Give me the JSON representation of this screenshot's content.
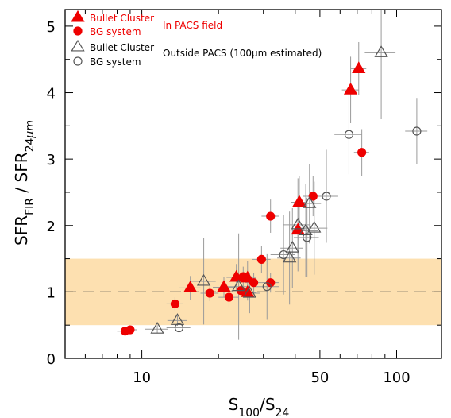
{
  "chart_data": {
    "type": "scatter",
    "xscale": "log",
    "xlim": [
      5,
      150
    ],
    "ylim": [
      0,
      5.25
    ],
    "xticks": [
      10,
      50,
      100
    ],
    "yticks": [
      0,
      1,
      2,
      3,
      4,
      5
    ],
    "xlabel": {
      "main": "S",
      "sub1": "100",
      "sep": "/S",
      "sub2": "24"
    },
    "ylabel": {
      "a": "SFR",
      "asub": "FIR",
      "sep": "  /  SFR",
      "bsub": "24",
      "bsub_unit": "μm"
    },
    "band": {
      "y0": 0.5,
      "y1": 1.5,
      "color": "#fde0b0"
    },
    "reference_line": {
      "y": 1,
      "style": "dashed"
    },
    "legend_groups": [
      {
        "label": "In PACS field",
        "color": "#ee0000"
      },
      {
        "label": "Outside PACS (100μm estimated)",
        "color": "#000000"
      }
    ],
    "series": [
      {
        "name": "Bullet Cluster",
        "group": 0,
        "marker": "triangle",
        "filled": true,
        "color": "#ee0000",
        "points": [
          {
            "x": 15.5,
            "y": 1.06,
            "xerr": 1.5,
            "yerr": 0.18
          },
          {
            "x": 21,
            "y": 1.07,
            "xerr": 2.0,
            "yerr": 0.15
          },
          {
            "x": 23.5,
            "y": 1.22,
            "xerr": 2.0,
            "yerr": 0.2
          },
          {
            "x": 26,
            "y": 1.21,
            "xerr": 2.0,
            "yerr": 0.25
          },
          {
            "x": 26,
            "y": 0.99,
            "xerr": 2.0,
            "yerr": 0.12
          },
          {
            "x": 41,
            "y": 1.93,
            "xerr": 3.0,
            "yerr": 0.35
          },
          {
            "x": 41.5,
            "y": 2.35,
            "xerr": 3.0,
            "yerr": 0.4
          },
          {
            "x": 66,
            "y": 4.04,
            "xerr": 5.0,
            "yerr": 0.5
          },
          {
            "x": 71,
            "y": 4.36,
            "xerr": 5.0,
            "yerr": 0.4
          }
        ]
      },
      {
        "name": "BG system",
        "group": 0,
        "marker": "circle",
        "filled": true,
        "color": "#ee0000",
        "points": [
          {
            "x": 8.6,
            "y": 0.41,
            "xerr": 0.6,
            "yerr": 0.03
          },
          {
            "x": 9.0,
            "y": 0.43,
            "xerr": 0.6,
            "yerr": 0.03
          },
          {
            "x": 13.5,
            "y": 0.82,
            "xerr": 1.0,
            "yerr": 0.1
          },
          {
            "x": 18.5,
            "y": 0.98,
            "xerr": 1.5,
            "yerr": 0.12
          },
          {
            "x": 22,
            "y": 0.92,
            "xerr": 2.0,
            "yerr": 0.15
          },
          {
            "x": 24.5,
            "y": 1.02,
            "xerr": 2.0,
            "yerr": 0.12
          },
          {
            "x": 25,
            "y": 1.23,
            "xerr": 2.0,
            "yerr": 0.15
          },
          {
            "x": 27.5,
            "y": 1.14,
            "xerr": 2.0,
            "yerr": 0.15
          },
          {
            "x": 29.5,
            "y": 1.49,
            "xerr": 2.5,
            "yerr": 0.2
          },
          {
            "x": 32,
            "y": 2.14,
            "xerr": 2.5,
            "yerr": 0.25
          },
          {
            "x": 32,
            "y": 1.14,
            "xerr": 2.5,
            "yerr": 0.15
          },
          {
            "x": 47,
            "y": 2.44,
            "xerr": 4.0,
            "yerr": 0.3
          },
          {
            "x": 73,
            "y": 3.1,
            "xerr": 5.0,
            "yerr": 0.35
          }
        ]
      },
      {
        "name": "Bullet Cluster",
        "group": 1,
        "marker": "triangle",
        "filled": false,
        "color": "#000000",
        "points": [
          {
            "x": 11.5,
            "y": 0.44,
            "xerr": 1.2,
            "yerr": 0.06
          },
          {
            "x": 13.8,
            "y": 0.57,
            "xerr": 1.2,
            "yerr": 0.08
          },
          {
            "x": 17.5,
            "y": 1.16,
            "xerr": 2.0,
            "yerr": 0.65
          },
          {
            "x": 24,
            "y": 1.08,
            "xerr": 2.5,
            "yerr": 0.8
          },
          {
            "x": 26.5,
            "y": 0.98,
            "xerr": 2.5,
            "yerr": 0.3
          },
          {
            "x": 38,
            "y": 1.51,
            "xerr": 4.0,
            "yerr": 0.7
          },
          {
            "x": 39,
            "y": 1.66,
            "xerr": 4.0,
            "yerr": 0.6
          },
          {
            "x": 41,
            "y": 2.01,
            "xerr": 5.0,
            "yerr": 0.7
          },
          {
            "x": 44,
            "y": 1.92,
            "xerr": 5.0,
            "yerr": 0.7
          },
          {
            "x": 45.5,
            "y": 2.33,
            "xerr": 5.0,
            "yerr": 0.6
          },
          {
            "x": 47.5,
            "y": 1.96,
            "xerr": 6.0,
            "yerr": 0.7
          },
          {
            "x": 87,
            "y": 4.6,
            "xerr": 12.0,
            "yerr": 1.0
          }
        ]
      },
      {
        "name": "BG system",
        "group": 1,
        "marker": "circle",
        "filled": false,
        "color": "#000000",
        "points": [
          {
            "x": 14,
            "y": 0.46,
            "xerr": 1.5,
            "yerr": 0.05
          },
          {
            "x": 31,
            "y": 1.08,
            "xerr": 3.5,
            "yerr": 0.5
          },
          {
            "x": 36,
            "y": 1.56,
            "xerr": 4.0,
            "yerr": 0.6
          },
          {
            "x": 44.5,
            "y": 1.82,
            "xerr": 5.0,
            "yerr": 0.6
          },
          {
            "x": 53,
            "y": 2.44,
            "xerr": 6.0,
            "yerr": 0.7
          },
          {
            "x": 65,
            "y": 3.37,
            "xerr": 8.0,
            "yerr": 0.6
          },
          {
            "x": 120,
            "y": 3.42,
            "xerr": 12.0,
            "yerr": 0.5
          }
        ]
      }
    ]
  }
}
